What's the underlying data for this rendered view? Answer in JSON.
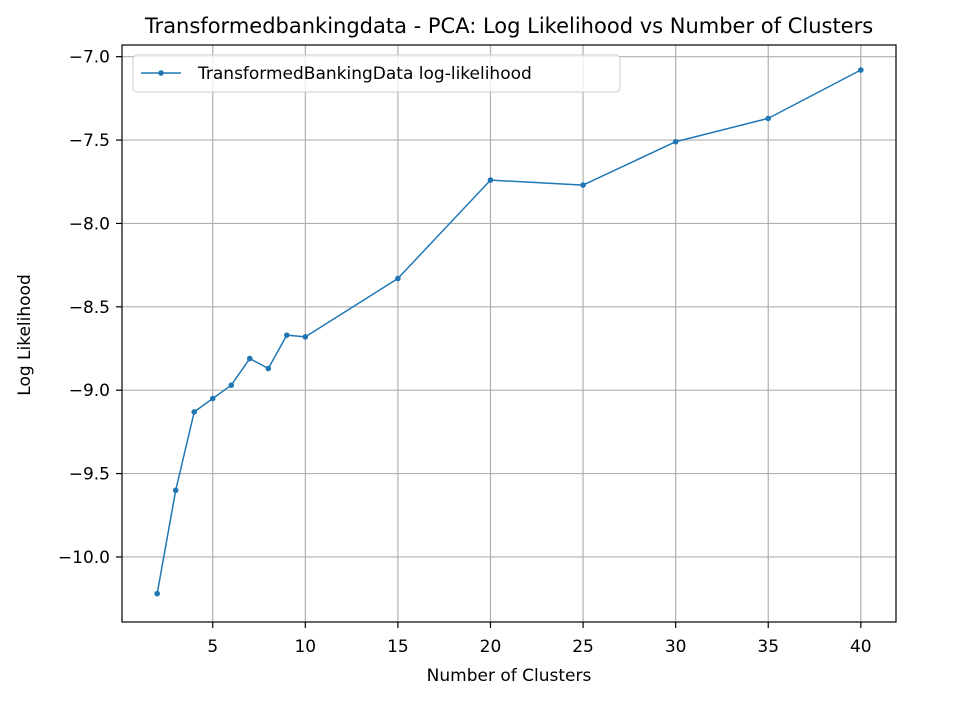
{
  "chart_data": {
    "type": "line",
    "title": "Transformedbankingdata - PCA: Log Likelihood vs Number of Clusters",
    "xlabel": "Number of Clusters",
    "ylabel": "Log Likelihood",
    "xlim": [
      0.1,
      41.9
    ],
    "ylim": [
      -10.39,
      -6.93
    ],
    "xticks": [
      5,
      10,
      15,
      20,
      25,
      30,
      35,
      40
    ],
    "xtick_labels": [
      "5",
      "10",
      "15",
      "20",
      "25",
      "30",
      "35",
      "40"
    ],
    "yticks": [
      -10.0,
      -9.5,
      -9.0,
      -8.5,
      -8.0,
      -7.5,
      -7.0
    ],
    "ytick_labels": [
      "−10.0",
      "−9.5",
      "−9.0",
      "−8.5",
      "−8.0",
      "−7.5",
      "−7.0"
    ],
    "grid": true,
    "legend": {
      "position": "top-left"
    },
    "series": [
      {
        "name": "TransformedBankingData log-likelihood",
        "color": "#1f77b4",
        "marker": "dot",
        "x": [
          2,
          3,
          4,
          5,
          6,
          7,
          8,
          9,
          10,
          15,
          20,
          25,
          30,
          35,
          40
        ],
        "y": [
          -10.22,
          -9.6,
          -9.13,
          -9.05,
          -8.97,
          -8.81,
          -8.87,
          -8.67,
          -8.68,
          -8.33,
          -7.74,
          -7.77,
          -7.51,
          -7.37,
          -7.08
        ]
      }
    ]
  }
}
